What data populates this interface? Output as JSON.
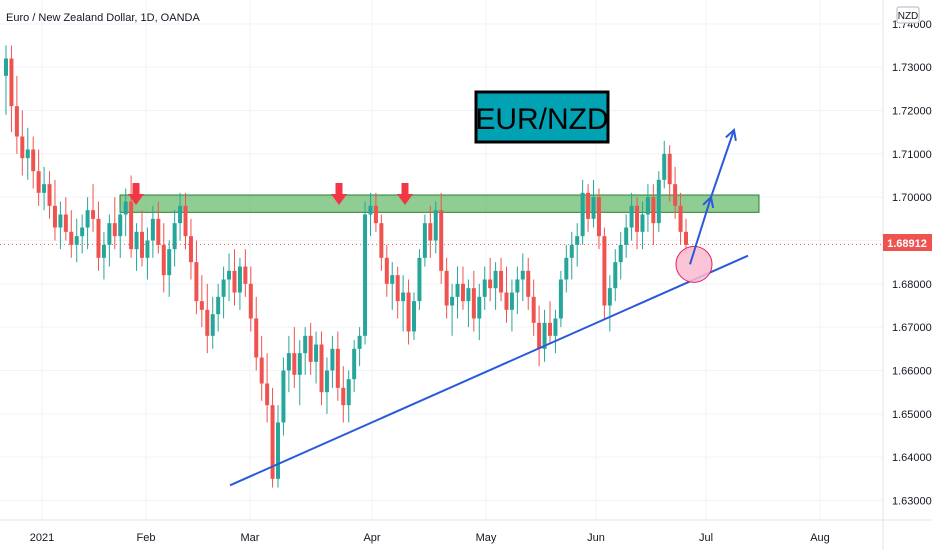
{
  "header": {
    "symbol_title": "Euro / New Zealand Dollar, 1D, OANDA",
    "currency_badge": "NZD"
  },
  "annotation": {
    "label": "EUR/NZD",
    "label_bg": "#00a2b4"
  },
  "colors": {
    "up": "#26a69a",
    "down": "#ef5350",
    "resistance_zone": "#4caf50",
    "trendline": "#2a5ada",
    "last_price": "#ef5350",
    "circle_fill": "#f8bbd0",
    "marker": "#f23645"
  },
  "chart_data": {
    "type": "candlestick",
    "y_range": [
      1.6255,
      1.7455
    ],
    "y_ticks": [
      "1.74000",
      "1.73000",
      "1.72000",
      "1.71000",
      "1.70000",
      "1.69000",
      "1.68000",
      "1.67000",
      "1.66000",
      "1.65000",
      "1.64000",
      "1.63000"
    ],
    "x_ticks": [
      "2021",
      "Feb",
      "Mar",
      "Apr",
      "May",
      "Jun",
      "Jul",
      "Aug"
    ],
    "last_price": "1.68912",
    "resistance_zone": [
      1.6965,
      1.7005
    ],
    "trendline": {
      "from": [
        "late Feb",
        1.6335
      ],
      "to": [
        "mid Jul",
        1.6865
      ]
    },
    "projection": [
      1.6845,
      1.7,
      1.7155
    ],
    "markers": [
      "late Jan",
      "Mar 22",
      "Apr 8"
    ],
    "candles": [
      [
        1.728,
        1.735,
        1.719,
        1.732
      ],
      [
        1.732,
        1.735,
        1.715,
        1.721
      ],
      [
        1.721,
        1.728,
        1.71,
        1.714
      ],
      [
        1.714,
        1.72,
        1.705,
        1.709
      ],
      [
        1.709,
        1.716,
        1.704,
        1.711
      ],
      [
        1.711,
        1.714,
        1.702,
        1.706
      ],
      [
        1.706,
        1.711,
        1.698,
        1.701
      ],
      [
        1.701,
        1.707,
        1.697,
        1.703
      ],
      [
        1.703,
        1.706,
        1.695,
        1.698
      ],
      [
        1.698,
        1.704,
        1.69,
        1.693
      ],
      [
        1.693,
        1.699,
        1.688,
        1.696
      ],
      [
        1.696,
        1.7,
        1.69,
        1.692
      ],
      [
        1.692,
        1.697,
        1.686,
        1.689
      ],
      [
        1.689,
        1.695,
        1.685,
        1.691
      ],
      [
        1.691,
        1.696,
        1.687,
        1.693
      ],
      [
        1.693,
        1.7,
        1.688,
        1.697
      ],
      [
        1.697,
        1.703,
        1.692,
        1.695
      ],
      [
        1.695,
        1.699,
        1.683,
        1.686
      ],
      [
        1.686,
        1.692,
        1.681,
        1.689
      ],
      [
        1.689,
        1.696,
        1.684,
        1.694
      ],
      [
        1.694,
        1.7,
        1.688,
        1.691
      ],
      [
        1.691,
        1.698,
        1.686,
        1.696
      ],
      [
        1.696,
        1.702,
        1.691,
        1.699
      ],
      [
        1.699,
        1.705,
        1.686,
        1.688
      ],
      [
        1.688,
        1.694,
        1.683,
        1.692
      ],
      [
        1.692,
        1.697,
        1.684,
        1.686
      ],
      [
        1.686,
        1.693,
        1.681,
        1.69
      ],
      [
        1.69,
        1.698,
        1.686,
        1.695
      ],
      [
        1.695,
        1.699,
        1.687,
        1.689
      ],
      [
        1.689,
        1.694,
        1.678,
        1.682
      ],
      [
        1.682,
        1.69,
        1.677,
        1.688
      ],
      [
        1.688,
        1.697,
        1.684,
        1.694
      ],
      [
        1.694,
        1.701,
        1.69,
        1.698
      ],
      [
        1.698,
        1.701,
        1.688,
        1.691
      ],
      [
        1.691,
        1.695,
        1.681,
        1.685
      ],
      [
        1.685,
        1.69,
        1.673,
        1.676
      ],
      [
        1.676,
        1.682,
        1.67,
        1.674
      ],
      [
        1.674,
        1.68,
        1.664,
        1.668
      ],
      [
        1.668,
        1.677,
        1.665,
        1.673
      ],
      [
        1.673,
        1.68,
        1.669,
        1.677
      ],
      [
        1.677,
        1.684,
        1.672,
        1.681
      ],
      [
        1.681,
        1.687,
        1.676,
        1.683
      ],
      [
        1.683,
        1.688,
        1.675,
        1.678
      ],
      [
        1.678,
        1.686,
        1.674,
        1.684
      ],
      [
        1.684,
        1.688,
        1.677,
        1.68
      ],
      [
        1.68,
        1.684,
        1.669,
        1.672
      ],
      [
        1.672,
        1.677,
        1.66,
        1.663
      ],
      [
        1.663,
        1.668,
        1.653,
        1.657
      ],
      [
        1.657,
        1.664,
        1.648,
        1.652
      ],
      [
        1.652,
        1.656,
        1.633,
        1.635
      ],
      [
        1.635,
        1.652,
        1.633,
        1.648
      ],
      [
        1.648,
        1.663,
        1.645,
        1.66
      ],
      [
        1.66,
        1.668,
        1.655,
        1.664
      ],
      [
        1.664,
        1.67,
        1.656,
        1.659
      ],
      [
        1.659,
        1.667,
        1.652,
        1.664
      ],
      [
        1.664,
        1.67,
        1.659,
        1.668
      ],
      [
        1.668,
        1.671,
        1.659,
        1.662
      ],
      [
        1.662,
        1.669,
        1.657,
        1.666
      ],
      [
        1.666,
        1.669,
        1.652,
        1.655
      ],
      [
        1.655,
        1.663,
        1.65,
        1.66
      ],
      [
        1.66,
        1.668,
        1.656,
        1.665
      ],
      [
        1.665,
        1.669,
        1.653,
        1.656
      ],
      [
        1.656,
        1.661,
        1.648,
        1.652
      ],
      [
        1.652,
        1.66,
        1.648,
        1.658
      ],
      [
        1.658,
        1.667,
        1.655,
        1.665
      ],
      [
        1.665,
        1.67,
        1.661,
        1.668
      ],
      [
        1.668,
        1.699,
        1.666,
        1.696
      ],
      [
        1.696,
        1.701,
        1.691,
        1.698
      ],
      [
        1.698,
        1.701,
        1.692,
        1.694
      ],
      [
        1.694,
        1.696,
        1.683,
        1.686
      ],
      [
        1.686,
        1.689,
        1.677,
        1.68
      ],
      [
        1.68,
        1.685,
        1.674,
        1.682
      ],
      [
        1.682,
        1.684,
        1.672,
        1.676
      ],
      [
        1.676,
        1.682,
        1.669,
        1.678
      ],
      [
        1.678,
        1.681,
        1.666,
        1.669
      ],
      [
        1.669,
        1.678,
        1.667,
        1.676
      ],
      [
        1.676,
        1.688,
        1.674,
        1.686
      ],
      [
        1.686,
        1.696,
        1.684,
        1.694
      ],
      [
        1.694,
        1.698,
        1.686,
        1.69
      ],
      [
        1.69,
        1.699,
        1.687,
        1.697
      ],
      [
        1.697,
        1.701,
        1.68,
        1.683
      ],
      [
        1.683,
        1.686,
        1.672,
        1.675
      ],
      [
        1.675,
        1.68,
        1.668,
        1.677
      ],
      [
        1.677,
        1.684,
        1.672,
        1.68
      ],
      [
        1.68,
        1.684,
        1.674,
        1.676
      ],
      [
        1.676,
        1.681,
        1.67,
        1.679
      ],
      [
        1.679,
        1.683,
        1.669,
        1.672
      ],
      [
        1.672,
        1.68,
        1.667,
        1.677
      ],
      [
        1.677,
        1.684,
        1.674,
        1.681
      ],
      [
        1.681,
        1.686,
        1.676,
        1.679
      ],
      [
        1.679,
        1.685,
        1.674,
        1.683
      ],
      [
        1.683,
        1.686,
        1.676,
        1.678
      ],
      [
        1.678,
        1.684,
        1.671,
        1.674
      ],
      [
        1.674,
        1.681,
        1.669,
        1.678
      ],
      [
        1.678,
        1.684,
        1.673,
        1.681
      ],
      [
        1.681,
        1.687,
        1.676,
        1.683
      ],
      [
        1.683,
        1.686,
        1.674,
        1.677
      ],
      [
        1.677,
        1.681,
        1.668,
        1.671
      ],
      [
        1.671,
        1.675,
        1.661,
        1.665
      ],
      [
        1.665,
        1.674,
        1.662,
        1.671
      ],
      [
        1.671,
        1.676,
        1.666,
        1.668
      ],
      [
        1.668,
        1.674,
        1.664,
        1.672
      ],
      [
        1.672,
        1.683,
        1.67,
        1.681
      ],
      [
        1.681,
        1.689,
        1.678,
        1.686
      ],
      [
        1.686,
        1.692,
        1.681,
        1.689
      ],
      [
        1.689,
        1.694,
        1.684,
        1.691
      ],
      [
        1.691,
        1.704,
        1.689,
        1.701
      ],
      [
        1.701,
        1.703,
        1.692,
        1.695
      ],
      [
        1.695,
        1.704,
        1.693,
        1.7
      ],
      [
        1.7,
        1.702,
        1.688,
        1.691
      ],
      [
        1.691,
        1.693,
        1.672,
        1.675
      ],
      [
        1.675,
        1.682,
        1.669,
        1.679
      ],
      [
        1.679,
        1.688,
        1.676,
        1.685
      ],
      [
        1.685,
        1.692,
        1.681,
        1.689
      ],
      [
        1.689,
        1.696,
        1.686,
        1.693
      ],
      [
        1.693,
        1.701,
        1.69,
        1.698
      ],
      [
        1.698,
        1.7,
        1.688,
        1.692
      ],
      [
        1.692,
        1.699,
        1.688,
        1.696
      ],
      [
        1.696,
        1.703,
        1.692,
        1.7
      ],
      [
        1.7,
        1.703,
        1.689,
        1.694
      ],
      [
        1.694,
        1.706,
        1.692,
        1.704
      ],
      [
        1.704,
        1.713,
        1.702,
        1.71
      ],
      [
        1.71,
        1.712,
        1.699,
        1.703
      ],
      [
        1.703,
        1.707,
        1.695,
        1.698
      ],
      [
        1.698,
        1.701,
        1.689,
        1.692
      ],
      [
        1.692,
        1.695,
        1.687,
        1.689
      ]
    ]
  }
}
